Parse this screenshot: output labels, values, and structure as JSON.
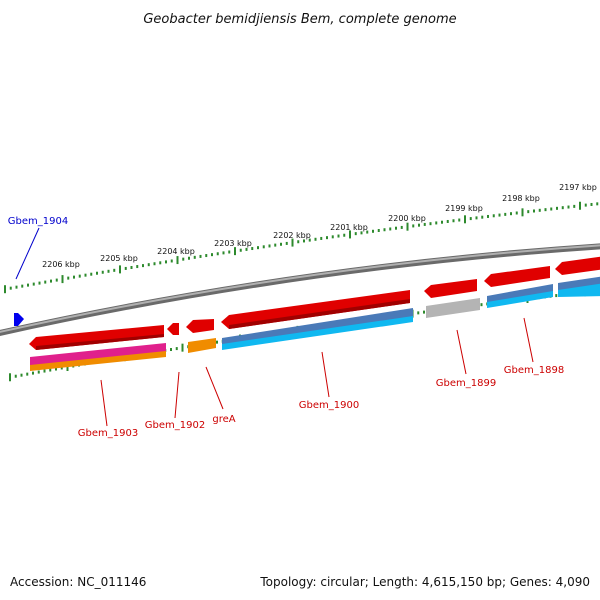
{
  "title": "Geobacter bemidjiensis Bem, complete genome",
  "footer": {
    "accession": "Accession: NC_011146",
    "summary": "Topology: circular; Length: 4,615,150 bp; Genes: 4,090"
  },
  "colors": {
    "forward_label": "#0000cc",
    "reverse_label": "#cc0000",
    "backbone": "#808080",
    "ticks": "#2d8a2d",
    "gene_red": "#e00000",
    "gene_blue": "#0000ee",
    "cds_magenta": "#e0208c",
    "cds_orange": "#f08c00",
    "cds_steel": "#4a7ab8",
    "cds_cyan": "#10b8f0",
    "cds_grey": "#b4b4b4"
  },
  "ticks": [
    "2206 kbp",
    "2205 kbp",
    "2204 kbp",
    "2203 kbp",
    "2202 kbp",
    "2201 kbp",
    "2200 kbp",
    "2199 kbp",
    "2198 kbp",
    "2197 kbp"
  ],
  "genes": [
    {
      "name": "Gbem_1904",
      "strand": "forward"
    },
    {
      "name": "Gbem_1903",
      "strand": "reverse"
    },
    {
      "name": "Gbem_1902",
      "strand": "reverse"
    },
    {
      "name": "greA",
      "strand": "reverse"
    },
    {
      "name": "Gbem_1900",
      "strand": "reverse"
    },
    {
      "name": "Gbem_1899",
      "strand": "reverse"
    },
    {
      "name": "Gbem_1898",
      "strand": "reverse"
    }
  ]
}
